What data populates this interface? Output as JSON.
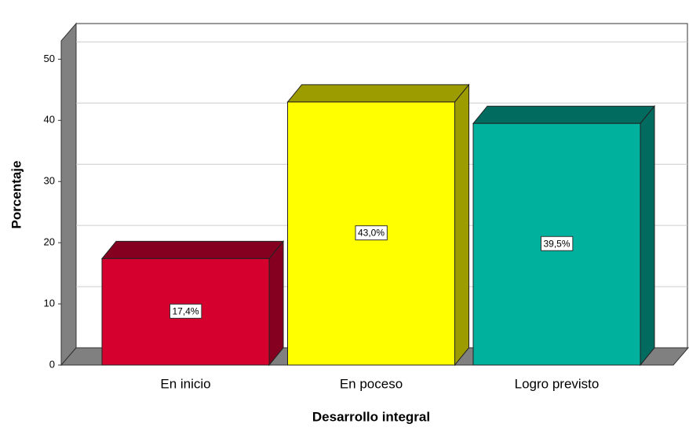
{
  "chart_data": {
    "type": "bar3d",
    "x_label": "Desarrollo integral",
    "y_label": "Porcentaje",
    "categories": [
      "En inicio",
      "En poceso",
      "Logro previsto"
    ],
    "values": [
      17.4,
      43.0,
      39.5
    ],
    "value_labels": [
      "17,4%",
      "43,0%",
      "39,5%"
    ],
    "colors": [
      "#d5002e",
      "#ffff00",
      "#00b19e"
    ],
    "shade_colors": [
      "#850020",
      "#9c9c00",
      "#006b5e"
    ],
    "ylim": [
      0,
      53
    ],
    "yticks": [
      0,
      10,
      20,
      30,
      40,
      50
    ],
    "grid": true
  }
}
